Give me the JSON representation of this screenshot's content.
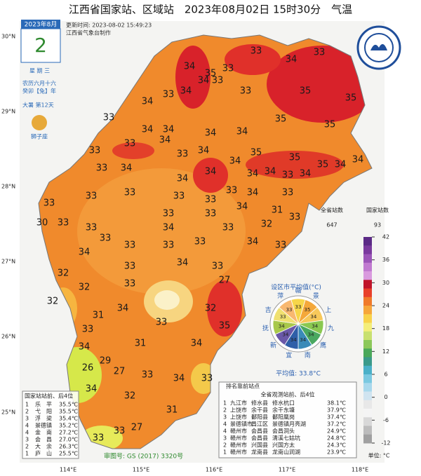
{
  "header": {
    "title": "江西省国家站、区域站　2023年08月02日 15时30分　气温",
    "updated": "更新时间: 2023-08-02 15:49:23",
    "maker": "江西省气象台制作"
  },
  "calendar": {
    "month": "2023年8月",
    "day": "2",
    "weekday": "星 期 三",
    "lunar": "农历六月十六",
    "year": "癸卯【兔】年",
    "term": "大暑 第12天",
    "zodiac": "狮子座"
  },
  "axes": {
    "lat": [
      "30°N",
      "29°N",
      "28°N",
      "27°N",
      "26°N",
      "25°N"
    ],
    "lon": [
      "114°E",
      "115°E",
      "116°E",
      "117°E",
      "118°E"
    ]
  },
  "stations": [
    "34",
    "35",
    "33",
    "33",
    "34",
    "33",
    "34",
    "34",
    "33",
    "33",
    "35",
    "35",
    "34",
    "33",
    "35",
    "35",
    "33",
    "34",
    "34",
    "34",
    "34",
    "33",
    "33",
    "34",
    "33",
    "34",
    "34",
    "35",
    "35",
    "35",
    "34",
    "34",
    "34",
    "34",
    "34",
    "33",
    "33",
    "34",
    "34",
    "34",
    "33",
    "34",
    "33",
    "33",
    "33",
    "33",
    "33",
    "33",
    "34",
    "31",
    "30",
    "33",
    "33",
    "33",
    "33",
    "32",
    "33",
    "33",
    "33",
    "34",
    "33",
    "33",
    "33",
    "34",
    "33",
    "34",
    "33",
    "34",
    "33",
    "32",
    "32",
    "33",
    "27",
    "32",
    "34",
    "32",
    "31",
    "33",
    "33",
    "34",
    "31",
    "34",
    "35",
    "29",
    "26",
    "34",
    "27",
    "33",
    "33",
    "34",
    "32",
    "31",
    "33",
    "27",
    "33"
  ],
  "legend": {
    "all_label": "全省站数",
    "all_count": "647",
    "national_label": "国家站数",
    "national_count": "93",
    "ticks": [
      42,
      36,
      30,
      24,
      18,
      12,
      6,
      0,
      -6,
      -12
    ],
    "unit": "单位: °C"
  },
  "pie": {
    "title": "设区市平均值(°C)",
    "cities": [
      "赣",
      "景",
      "上",
      "九",
      "鹰",
      "南",
      "宜",
      "新",
      "抚",
      "吉",
      "萍"
    ],
    "values": [
      "33",
      "35",
      "34",
      "34",
      "34",
      "34",
      "34",
      "34",
      "34",
      "33",
      "33"
    ],
    "average": "平均值: 33.8°C"
  },
  "national": {
    "title": "国家站站前、后4位",
    "rows": [
      [
        "1",
        "乐　平",
        "35.5℃"
      ],
      [
        "2",
        "弋　阳",
        "35.5℃"
      ],
      [
        "3",
        "浮　梁",
        "35.4℃"
      ],
      [
        "4",
        "景德镇",
        "35.2℃"
      ],
      [
        "4",
        "金　南",
        "27.2℃"
      ],
      [
        "3",
        "会　昌",
        "27.0℃"
      ],
      [
        "2",
        "大　余",
        "26.3℃"
      ],
      [
        "1",
        "庐　山",
        "25.5℃"
      ]
    ]
  },
  "ranking": {
    "title": "排名靠前站点",
    "subtitle": "全省观测站前、后4位",
    "rows": [
      [
        "1",
        "九江市",
        "修水县",
        "修水杭口",
        "38.1℃"
      ],
      [
        "2",
        "上饶市",
        "余干县",
        "余干东塘",
        "37.9℃"
      ],
      [
        "3",
        "上饶市",
        "鄱阳县",
        "鄱阳凰岗",
        "37.4℃"
      ],
      [
        "4",
        "景德镇市",
        "昌江区",
        "景德镇月亮湖",
        "37.2℃"
      ],
      [
        "4",
        "赣州市",
        "会昌县",
        "会昌洞头",
        "24.9℃"
      ],
      [
        "3",
        "赣州市",
        "会昌县",
        "清溪七姑坑",
        "24.8℃"
      ],
      [
        "2",
        "赣州市",
        "兴国县",
        "兴国方太",
        "24.3℃"
      ],
      [
        "1",
        "赣州市",
        "龙南县",
        "龙南山润湖",
        "23.9℃"
      ]
    ]
  },
  "footer": {
    "approval": "审图号: GS (2017) 3320号"
  }
}
